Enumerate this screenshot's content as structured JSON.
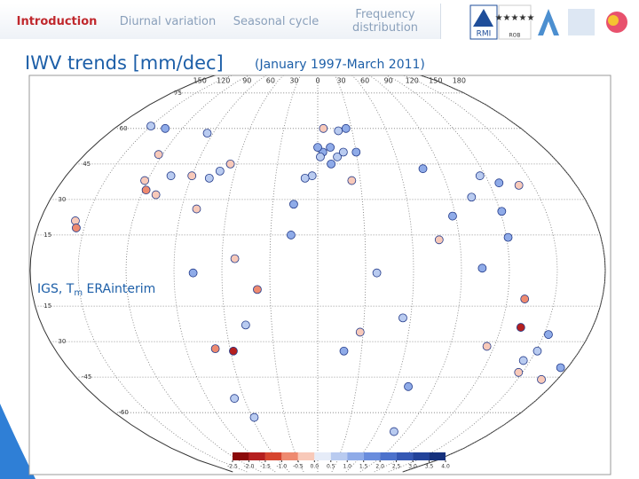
{
  "nav": {
    "tabs": [
      "Introduction",
      "Diurnal variation",
      "Seasonal cycle",
      "Frequency distribution"
    ],
    "active": 0
  },
  "logos": {
    "rmi": "RMI",
    "rob": "ROB"
  },
  "header": {
    "title": "IWV trends [mm/dec]",
    "subtitle": "(January 1997-March 2011)"
  },
  "annotation": {
    "prefix": "IGS, T",
    "subscript": "m",
    "suffix": " ERAinterim"
  },
  "map": {
    "lon_labels": [
      {
        "value": -150,
        "label": "150"
      },
      {
        "value": -120,
        "label": "120"
      },
      {
        "value": -90,
        "label": "90"
      },
      {
        "value": -60,
        "label": "60"
      },
      {
        "value": -30,
        "label": "30"
      },
      0,
      30,
      60,
      90,
      120,
      150,
      180
    ],
    "lat_labels": [
      75,
      60,
      45,
      30,
      15,
      {
        "value": -15,
        "label": "15"
      },
      {
        "value": -30,
        "label": "30"
      },
      -45,
      -60
    ],
    "stations": [
      {
        "lon": 4,
        "lat": 50,
        "value": 1.0
      },
      {
        "lon": 10,
        "lat": 52,
        "value": 1.0
      },
      {
        "lon": 2,
        "lat": 48,
        "value": 0.5
      },
      {
        "lon": 15,
        "lat": 48,
        "value": 0.5
      },
      {
        "lon": -4,
        "lat": 40,
        "value": 0.5
      },
      {
        "lon": 10,
        "lat": 45,
        "value": 1.0
      },
      {
        "lon": 20,
        "lat": 50,
        "value": 0.5
      },
      {
        "lon": 25,
        "lat": 60,
        "value": 1.0
      },
      {
        "lon": 18,
        "lat": 59,
        "value": 0.5
      },
      {
        "lon": 5,
        "lat": 60,
        "value": -0.5
      },
      {
        "lon": -9,
        "lat": 39,
        "value": 0.5
      },
      {
        "lon": 30,
        "lat": 50,
        "value": 1.0
      },
      {
        "lon": 0,
        "lat": 52,
        "value": 1.0
      },
      {
        "lon": 24,
        "lat": 38,
        "value": -0.5
      },
      {
        "lon": -123,
        "lat": 49,
        "value": -0.5
      },
      {
        "lon": -122,
        "lat": 38,
        "value": -0.5
      },
      {
        "lon": -118,
        "lat": 34,
        "value": -1.0
      },
      {
        "lon": -105,
        "lat": 40,
        "value": 0.5
      },
      {
        "lon": -90,
        "lat": 40,
        "value": -0.5
      },
      {
        "lon": -77,
        "lat": 39,
        "value": 0.5
      },
      {
        "lon": -71,
        "lat": 42,
        "value": 0.5
      },
      {
        "lon": -80,
        "lat": 26,
        "value": -0.5
      },
      {
        "lon": -150,
        "lat": 61,
        "value": 0.5
      },
      {
        "lon": -135,
        "lat": 60,
        "value": 1.0
      },
      {
        "lon": -95,
        "lat": 58,
        "value": 0.5
      },
      {
        "lon": -65,
        "lat": 45,
        "value": -0.5
      },
      {
        "lon": -110,
        "lat": 32,
        "value": -0.5
      },
      {
        "lon": -157,
        "lat": 21,
        "value": -0.5
      },
      {
        "lon": -155,
        "lat": 18,
        "value": -1.0
      },
      {
        "lon": -78,
        "lat": -1,
        "value": 1.0
      },
      {
        "lon": -47,
        "lat": -23,
        "value": 0.5
      },
      {
        "lon": -58,
        "lat": -34,
        "value": -2.0
      },
      {
        "lon": -70,
        "lat": -33,
        "value": -1.0
      },
      {
        "lon": -68,
        "lat": -54,
        "value": 0.5
      },
      {
        "lon": -38,
        "lat": -8,
        "value": -1.0
      },
      {
        "lon": -52,
        "lat": 5,
        "value": -0.5
      },
      {
        "lon": 18,
        "lat": -34,
        "value": 1.0
      },
      {
        "lon": 28,
        "lat": -26,
        "value": -0.5
      },
      {
        "lon": 37,
        "lat": -1,
        "value": 0.5
      },
      {
        "lon": -16,
        "lat": 28,
        "value": 1.0
      },
      {
        "lon": -17,
        "lat": 15,
        "value": 1.0
      },
      {
        "lon": 77,
        "lat": 43,
        "value": 1.0
      },
      {
        "lon": 104,
        "lat": 31,
        "value": 0.5
      },
      {
        "lon": 116,
        "lat": 40,
        "value": 0.5
      },
      {
        "lon": 127,
        "lat": 37,
        "value": 1.0
      },
      {
        "lon": 140,
        "lat": 36,
        "value": -0.5
      },
      {
        "lon": 121,
        "lat": 25,
        "value": 1.0
      },
      {
        "lon": 103,
        "lat": 1,
        "value": 1.0
      },
      {
        "lon": 121,
        "lat": 14,
        "value": 1.0
      },
      {
        "lon": 77,
        "lat": 13,
        "value": -0.5
      },
      {
        "lon": 55,
        "lat": -20,
        "value": 0.5
      },
      {
        "lon": 88,
        "lat": 23,
        "value": 1.0
      },
      {
        "lon": 115,
        "lat": -32,
        "value": -0.5
      },
      {
        "lon": 131,
        "lat": -12,
        "value": -1.0
      },
      {
        "lon": 133,
        "lat": -24,
        "value": -2.0
      },
      {
        "lon": 153,
        "lat": -27,
        "value": 1.0
      },
      {
        "lon": 151,
        "lat": -34,
        "value": 0.5
      },
      {
        "lon": 147,
        "lat": -43,
        "value": -0.5
      },
      {
        "lon": 175,
        "lat": -41,
        "value": 1.0
      },
      {
        "lon": 168,
        "lat": -46,
        "value": -0.5
      },
      {
        "lon": 145,
        "lat": -38,
        "value": 0.5
      },
      {
        "lon": 70,
        "lat": -49,
        "value": 1.0
      },
      {
        "lon": -58,
        "lat": -62,
        "value": 0.5
      },
      {
        "lon": 78,
        "lat": -68,
        "value": 0.5
      }
    ]
  },
  "colorbar": {
    "ticks": [
      -2.5,
      {
        "value": -2,
        "label": "-2.0"
      },
      -1.5,
      {
        "value": -1,
        "label": "-1.0"
      },
      -0.5,
      {
        "value": 0,
        "label": "0.0"
      },
      0.5,
      {
        "value": 1,
        "label": "1.0"
      },
      1.5,
      {
        "value": 2,
        "label": "2.0"
      },
      2.5,
      {
        "value": 3,
        "label": "3.0"
      },
      3.5,
      {
        "value": 4,
        "label": "4.0"
      }
    ],
    "colors": [
      "#8b0a0a",
      "#b51f1f",
      "#d6452f",
      "#ee8a70",
      "#f8c9b9",
      "#e6ecf8",
      "#b9cbf0",
      "#8fabe8",
      "#6a8ddd",
      "#4c72cc",
      "#3558b4",
      "#23439a",
      "#14307c"
    ]
  }
}
